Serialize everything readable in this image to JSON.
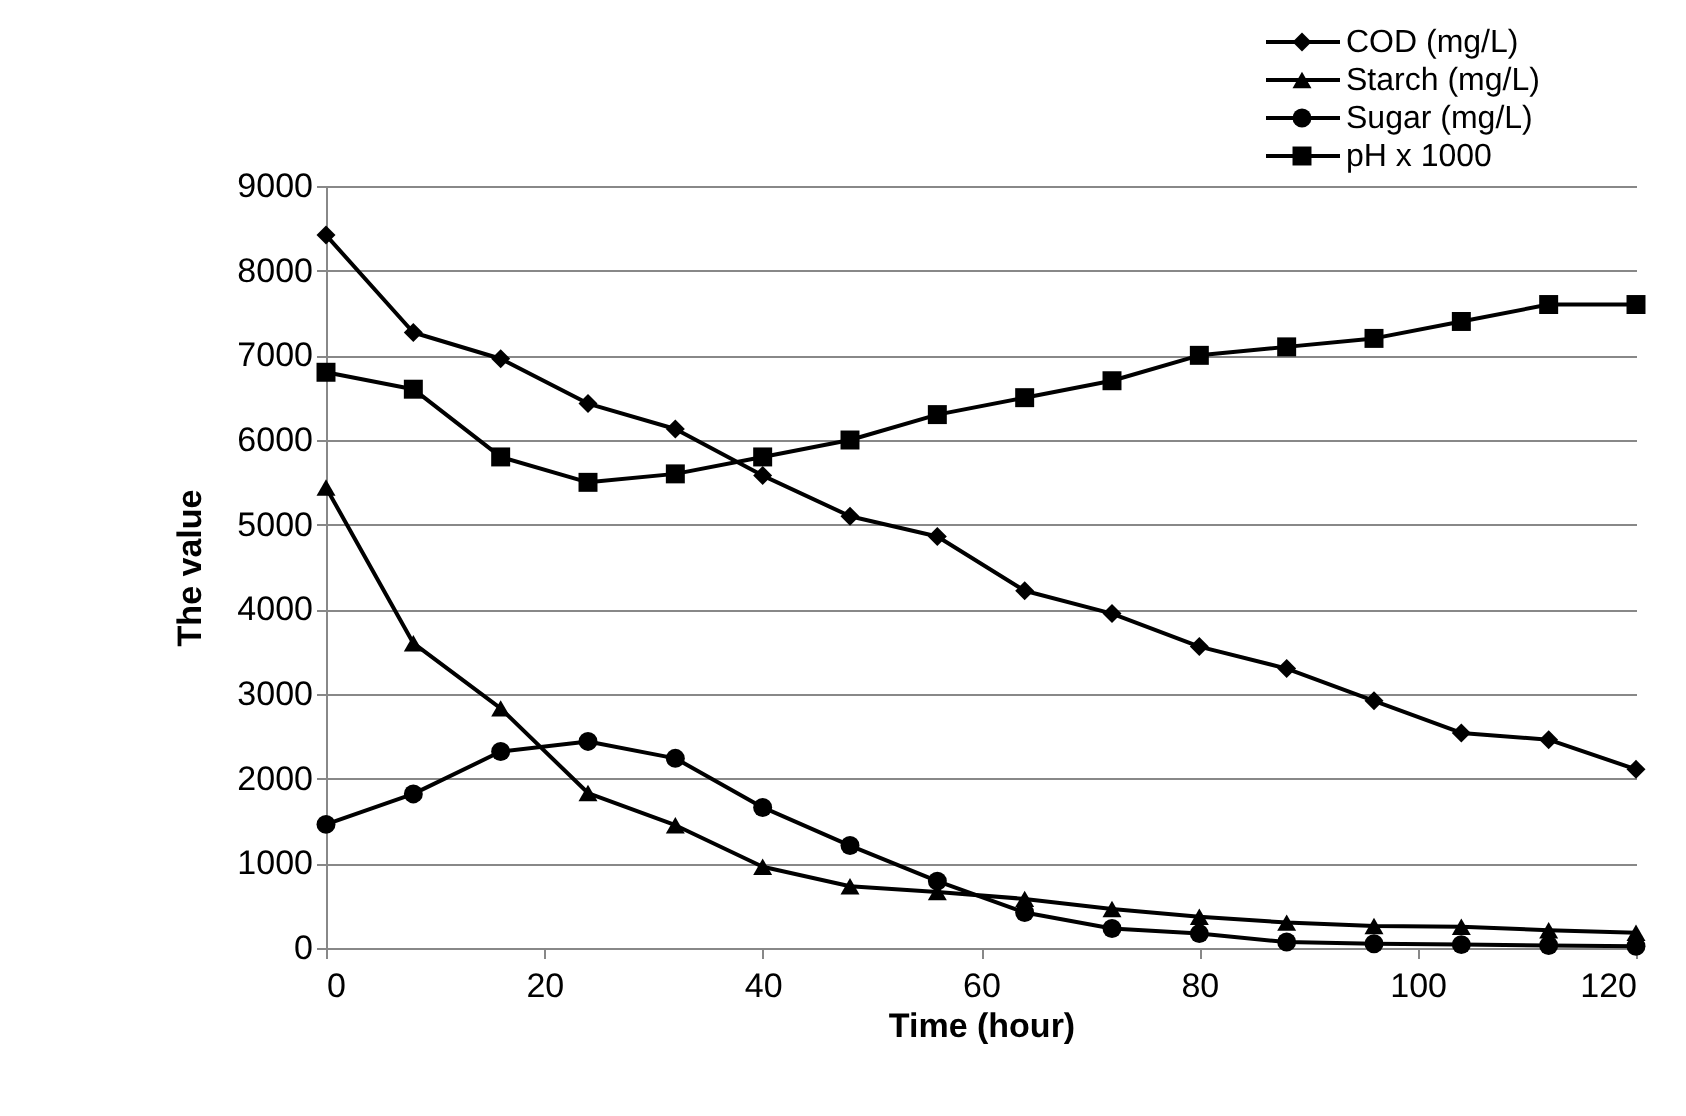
{
  "chart_data": {
    "type": "line",
    "xlabel": "Time (hour)",
    "ylabel": "The value",
    "x": [
      0,
      8,
      16,
      24,
      32,
      40,
      48,
      56,
      64,
      72,
      80,
      88,
      96,
      104,
      112,
      120
    ],
    "series": [
      {
        "name": "COD (mg/L)",
        "color": "#000000",
        "marker": "diamond",
        "values": [
          8420,
          7270,
          6960,
          6430,
          6130,
          5580,
          5100,
          4860,
          4220,
          3950,
          3560,
          3300,
          2920,
          2540,
          2460,
          2110
        ]
      },
      {
        "name": "Starch (mg/L)",
        "color": "#000000",
        "marker": "triangle",
        "values": [
          5440,
          3600,
          2830,
          1830,
          1450,
          960,
          730,
          660,
          580,
          460,
          370,
          300,
          260,
          250,
          210,
          180
        ]
      },
      {
        "name": "Sugar (mg/L)",
        "color": "#000000",
        "marker": "circle",
        "values": [
          1460,
          1820,
          2320,
          2440,
          2240,
          1660,
          1210,
          790,
          420,
          230,
          170,
          70,
          50,
          40,
          30,
          20
        ]
      },
      {
        "name": "pH x 1000",
        "color": "#000000",
        "marker": "square",
        "values": [
          6800,
          6600,
          5800,
          5500,
          5600,
          5800,
          6000,
          6300,
          6500,
          6700,
          7000,
          7100,
          7200,
          7400,
          7600,
          7600
        ]
      }
    ],
    "xlim": [
      0,
      120
    ],
    "xticks": [
      0,
      20,
      40,
      60,
      80,
      100,
      120
    ],
    "ylim": [
      0,
      9000
    ],
    "yticks": [
      0,
      1000,
      2000,
      3000,
      4000,
      5000,
      6000,
      7000,
      8000,
      9000
    ],
    "grid": "y",
    "legend": "top right",
    "line_style": "solid"
  }
}
